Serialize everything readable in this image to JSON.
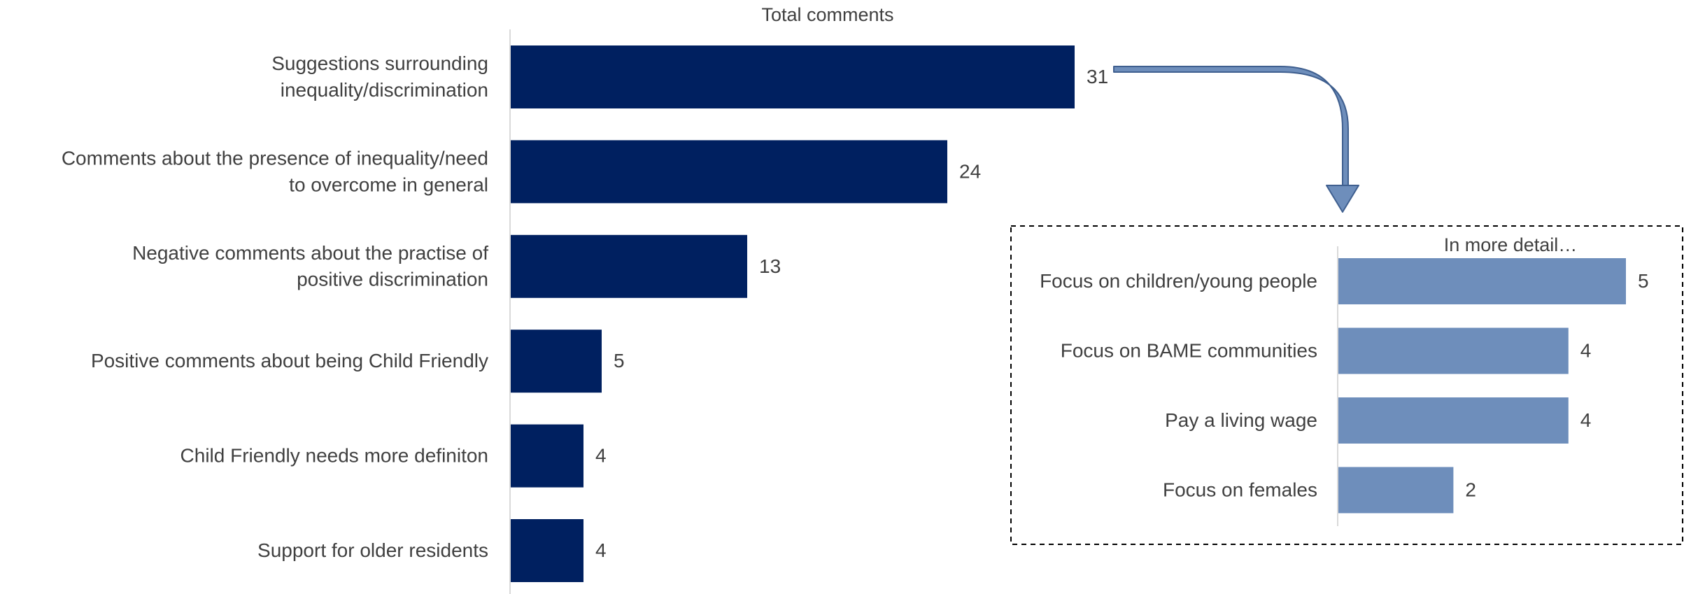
{
  "chart_data": [
    {
      "type": "bar",
      "orientation": "horizontal",
      "title": "Total comments",
      "categories": [
        "Suggestions surrounding inequality/discrimination",
        "Comments about the presence of inequality/need to overcome in general",
        "Negative comments about the practise of positive discrimination",
        "Positive comments about being Child Friendly",
        "Child Friendly needs more definiton",
        "Support for older residents"
      ],
      "values": [
        31,
        24,
        13,
        5,
        4,
        4
      ],
      "data_labels": [
        "31",
        "24",
        "13",
        "5",
        "4",
        "4"
      ],
      "grid": false,
      "bar_color": "#002060"
    },
    {
      "type": "bar",
      "orientation": "horizontal",
      "title": "In more detail…",
      "categories": [
        "Focus on children/young people",
        "Focus on BAME communities",
        "Pay a living wage",
        "Focus on females"
      ],
      "values": [
        5,
        4,
        4,
        2
      ],
      "data_labels": [
        "5",
        "4",
        "4",
        "2"
      ],
      "grid": false,
      "bar_color": "#6E8EBB"
    }
  ],
  "colors": {
    "main_bar": "#002060",
    "detail_bar": "#6E8EBB",
    "arrow_fill": "#6E8EBB",
    "arrow_outline": "#3F5F8F",
    "axis": "#D9D9D9",
    "text": "#404040"
  }
}
